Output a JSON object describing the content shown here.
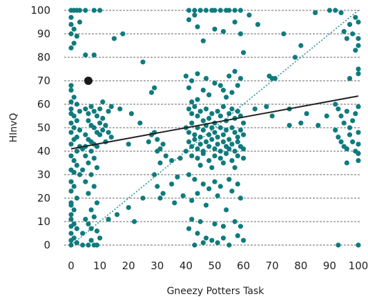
{
  "chart_data": {
    "type": "scatter",
    "title": "",
    "xlabel": "Gneezy Potters Task",
    "ylabel": "HInvQ",
    "xlim": [
      0,
      100
    ],
    "ylim": [
      0,
      100
    ],
    "x_ticks": [
      0,
      10,
      20,
      30,
      40,
      50,
      60,
      70,
      80,
      90,
      100
    ],
    "y_ticks": [
      0,
      10,
      20,
      30,
      40,
      50,
      60,
      70,
      80,
      90,
      100
    ],
    "x_tick_labels": [
      "0",
      "10",
      "20",
      "30",
      "40",
      "50",
      "60",
      "70",
      "80",
      "90",
      "100"
    ],
    "y_tick_labels": [
      "0",
      "10",
      "20",
      "30",
      "40",
      "50",
      "60",
      "70",
      "80",
      "90",
      "100"
    ],
    "grid": "horizontal-dashed",
    "colors": {
      "points": "#0f7b7e",
      "fit_line": "#222222",
      "identity_line": "#2a9090",
      "highlight": "#1a1a1a"
    },
    "identity_line": {
      "x": [
        0,
        100
      ],
      "y": [
        0,
        100
      ]
    },
    "fit_line": {
      "x": [
        0,
        100
      ],
      "y": [
        41,
        63.5
      ]
    },
    "highlight_point": {
      "x": 6,
      "y": 70
    },
    "points": [
      [
        0,
        100
      ],
      [
        1,
        100
      ],
      [
        2,
        100
      ],
      [
        3,
        100
      ],
      [
        5,
        100
      ],
      [
        8,
        100
      ],
      [
        10,
        100
      ],
      [
        0,
        97
      ],
      [
        0,
        94
      ],
      [
        1,
        92
      ],
      [
        0,
        90
      ],
      [
        2,
        89
      ],
      [
        1,
        86
      ],
      [
        0,
        84
      ],
      [
        5,
        81
      ],
      [
        8,
        81
      ],
      [
        3,
        95
      ],
      [
        0,
        58
      ],
      [
        15,
        88
      ],
      [
        18,
        90
      ],
      [
        25,
        78
      ],
      [
        28,
        65
      ],
      [
        29,
        67
      ],
      [
        0,
        68
      ],
      [
        0,
        66
      ],
      [
        1,
        63
      ],
      [
        0,
        61
      ],
      [
        2,
        60
      ],
      [
        0,
        56
      ],
      [
        1,
        55
      ],
      [
        3,
        57
      ],
      [
        2,
        53
      ],
      [
        0,
        52
      ],
      [
        1,
        50
      ],
      [
        3,
        49
      ],
      [
        0,
        48
      ],
      [
        2,
        46
      ],
      [
        1,
        45
      ],
      [
        0,
        43
      ],
      [
        3,
        42
      ],
      [
        2,
        40
      ],
      [
        4,
        41
      ],
      [
        0,
        38
      ],
      [
        1,
        36
      ],
      [
        2,
        34
      ],
      [
        0,
        32
      ],
      [
        1,
        31
      ],
      [
        3,
        30
      ],
      [
        0,
        27
      ],
      [
        1,
        25
      ],
      [
        0,
        23
      ],
      [
        2,
        20
      ],
      [
        0,
        18
      ],
      [
        0,
        17
      ],
      [
        1,
        15
      ],
      [
        0,
        13
      ],
      [
        0,
        11
      ],
      [
        1,
        9
      ],
      [
        0,
        8
      ],
      [
        2,
        7
      ],
      [
        0,
        5
      ],
      [
        1,
        3
      ],
      [
        0,
        2
      ],
      [
        2,
        1
      ],
      [
        0,
        0
      ],
      [
        4,
        0
      ],
      [
        6,
        0
      ],
      [
        8,
        0
      ],
      [
        9,
        0
      ],
      [
        7,
        2
      ],
      [
        5,
        58
      ],
      [
        6,
        56
      ],
      [
        7,
        59
      ],
      [
        8,
        57
      ],
      [
        9,
        55
      ],
      [
        6,
        53
      ],
      [
        7,
        51
      ],
      [
        8,
        50
      ],
      [
        9,
        48
      ],
      [
        10,
        47
      ],
      [
        5,
        47
      ],
      [
        6,
        45
      ],
      [
        7,
        44
      ],
      [
        8,
        43
      ],
      [
        9,
        42
      ],
      [
        5,
        42
      ],
      [
        7,
        40
      ],
      [
        5,
        38
      ],
      [
        8,
        37
      ],
      [
        6,
        35
      ],
      [
        9,
        33
      ],
      [
        4,
        32
      ],
      [
        7,
        30
      ],
      [
        5,
        27
      ],
      [
        8,
        25
      ],
      [
        6,
        22
      ],
      [
        9,
        18
      ],
      [
        7,
        15
      ],
      [
        8,
        12
      ],
      [
        5,
        11
      ],
      [
        6,
        9
      ],
      [
        7,
        7
      ],
      [
        9,
        6
      ],
      [
        10,
        3
      ],
      [
        4,
        5
      ],
      [
        10,
        58
      ],
      [
        11,
        54
      ],
      [
        12,
        51
      ],
      [
        13,
        48
      ],
      [
        14,
        46
      ],
      [
        12,
        44
      ],
      [
        10,
        52
      ],
      [
        11,
        49
      ],
      [
        13,
        57
      ],
      [
        14,
        59
      ],
      [
        11,
        61
      ],
      [
        17,
        58
      ],
      [
        21,
        56
      ],
      [
        24,
        52
      ],
      [
        20,
        43
      ],
      [
        28,
        47
      ],
      [
        30,
        45
      ],
      [
        32,
        43
      ],
      [
        31,
        41
      ],
      [
        29,
        48
      ],
      [
        27,
        44
      ],
      [
        30,
        40
      ],
      [
        33,
        38
      ],
      [
        31,
        35
      ],
      [
        35,
        36
      ],
      [
        38,
        37
      ],
      [
        29,
        30
      ],
      [
        30,
        25
      ],
      [
        32,
        22
      ],
      [
        31,
        20
      ],
      [
        35,
        26
      ],
      [
        37,
        29
      ],
      [
        36,
        18
      ],
      [
        39,
        21
      ],
      [
        25,
        20
      ],
      [
        20,
        16
      ],
      [
        16,
        13
      ],
      [
        13,
        11
      ],
      [
        22,
        10
      ],
      [
        41,
        100
      ],
      [
        43,
        100
      ],
      [
        45,
        100
      ],
      [
        47,
        100
      ],
      [
        49,
        100
      ],
      [
        50,
        100
      ],
      [
        52,
        100
      ],
      [
        54,
        100
      ],
      [
        55,
        100
      ],
      [
        57,
        100
      ],
      [
        59,
        100
      ],
      [
        62,
        98
      ],
      [
        44,
        93
      ],
      [
        50,
        92
      ],
      [
        53,
        91
      ],
      [
        46,
        87
      ],
      [
        60,
        82
      ],
      [
        59,
        90
      ],
      [
        57,
        95
      ],
      [
        65,
        94
      ],
      [
        41,
        96
      ],
      [
        43,
        98
      ],
      [
        40,
        72
      ],
      [
        42,
        70
      ],
      [
        44,
        73
      ],
      [
        47,
        71
      ],
      [
        50,
        69
      ],
      [
        52,
        68
      ],
      [
        55,
        72
      ],
      [
        57,
        74
      ],
      [
        59,
        71
      ],
      [
        58,
        68
      ],
      [
        46,
        66
      ],
      [
        48,
        64
      ],
      [
        53,
        66
      ],
      [
        41,
        67
      ],
      [
        44,
        62
      ],
      [
        54,
        63
      ],
      [
        56,
        65
      ],
      [
        42,
        61
      ],
      [
        41,
        58
      ],
      [
        42,
        56
      ],
      [
        43,
        59
      ],
      [
        44,
        55
      ],
      [
        45,
        57
      ],
      [
        46,
        53
      ],
      [
        47,
        58
      ],
      [
        48,
        54
      ],
      [
        49,
        56
      ],
      [
        50,
        52
      ],
      [
        51,
        57
      ],
      [
        52,
        55
      ],
      [
        53,
        59
      ],
      [
        54,
        53
      ],
      [
        55,
        56
      ],
      [
        56,
        58
      ],
      [
        57,
        54
      ],
      [
        58,
        57
      ],
      [
        59,
        55
      ],
      [
        60,
        52
      ],
      [
        40,
        50
      ],
      [
        41,
        48
      ],
      [
        42,
        52
      ],
      [
        43,
        47
      ],
      [
        44,
        50
      ],
      [
        45,
        46
      ],
      [
        46,
        49
      ],
      [
        47,
        51
      ],
      [
        48,
        47
      ],
      [
        49,
        50
      ],
      [
        50,
        48
      ],
      [
        51,
        46
      ],
      [
        52,
        50
      ],
      [
        53,
        47
      ],
      [
        54,
        49
      ],
      [
        55,
        45
      ],
      [
        56,
        50
      ],
      [
        57,
        48
      ],
      [
        58,
        46
      ],
      [
        59,
        49
      ],
      [
        60,
        47
      ],
      [
        41,
        44
      ],
      [
        42,
        42
      ],
      [
        43,
        45
      ],
      [
        44,
        41
      ],
      [
        45,
        43
      ],
      [
        46,
        40
      ],
      [
        47,
        44
      ],
      [
        48,
        42
      ],
      [
        49,
        45
      ],
      [
        50,
        41
      ],
      [
        51,
        43
      ],
      [
        52,
        40
      ],
      [
        53,
        44
      ],
      [
        54,
        42
      ],
      [
        55,
        41
      ],
      [
        56,
        43
      ],
      [
        57,
        40
      ],
      [
        58,
        44
      ],
      [
        59,
        42
      ],
      [
        60,
        41
      ],
      [
        40,
        40
      ],
      [
        42,
        38
      ],
      [
        44,
        37
      ],
      [
        46,
        39
      ],
      [
        48,
        36
      ],
      [
        50,
        38
      ],
      [
        52,
        37
      ],
      [
        54,
        39
      ],
      [
        56,
        36
      ],
      [
        58,
        38
      ],
      [
        60,
        37
      ],
      [
        45,
        34
      ],
      [
        49,
        33
      ],
      [
        53,
        35
      ],
      [
        57,
        33
      ],
      [
        41,
        30
      ],
      [
        43,
        28
      ],
      [
        46,
        26
      ],
      [
        48,
        24
      ],
      [
        50,
        27
      ],
      [
        52,
        25
      ],
      [
        55,
        28
      ],
      [
        58,
        26
      ],
      [
        44,
        22
      ],
      [
        51,
        21
      ],
      [
        56,
        23
      ],
      [
        59,
        20
      ],
      [
        42,
        19
      ],
      [
        47,
        17
      ],
      [
        54,
        15
      ],
      [
        45,
        10
      ],
      [
        50,
        9
      ],
      [
        53,
        8
      ],
      [
        57,
        10
      ],
      [
        41,
        7
      ],
      [
        44,
        5
      ],
      [
        47,
        3
      ],
      [
        49,
        2
      ],
      [
        51,
        1
      ],
      [
        53,
        3
      ],
      [
        55,
        0
      ],
      [
        58,
        4
      ],
      [
        43,
        0
      ],
      [
        46,
        1
      ],
      [
        42,
        11
      ],
      [
        59,
        8
      ],
      [
        60,
        2
      ],
      [
        64,
        58
      ],
      [
        68,
        59
      ],
      [
        70,
        55
      ],
      [
        76,
        58
      ],
      [
        80,
        52
      ],
      [
        82,
        56
      ],
      [
        86,
        51
      ],
      [
        89,
        55
      ],
      [
        76,
        51
      ],
      [
        92,
        60
      ],
      [
        93,
        58
      ],
      [
        94,
        55
      ],
      [
        95,
        52
      ],
      [
        96,
        57
      ],
      [
        97,
        50
      ],
      [
        98,
        53
      ],
      [
        99,
        56
      ],
      [
        100,
        59
      ],
      [
        92,
        49
      ],
      [
        93,
        46
      ],
      [
        94,
        44
      ],
      [
        95,
        42
      ],
      [
        96,
        41
      ],
      [
        97,
        47
      ],
      [
        98,
        44
      ],
      [
        99,
        40
      ],
      [
        100,
        48
      ],
      [
        100,
        43
      ],
      [
        100,
        39
      ],
      [
        100,
        36
      ],
      [
        96,
        35
      ],
      [
        69,
        72
      ],
      [
        70,
        71
      ],
      [
        71,
        71
      ],
      [
        74,
        90
      ],
      [
        78,
        80
      ],
      [
        80,
        85
      ],
      [
        85,
        99
      ],
      [
        90,
        100
      ],
      [
        92,
        100
      ],
      [
        94,
        99
      ],
      [
        95,
        91
      ],
      [
        96,
        88
      ],
      [
        97,
        94
      ],
      [
        98,
        90
      ],
      [
        99,
        97
      ],
      [
        100,
        95
      ],
      [
        100,
        88
      ],
      [
        100,
        85
      ],
      [
        100,
        75
      ],
      [
        100,
        73
      ],
      [
        99,
        83
      ],
      [
        97,
        71
      ],
      [
        93,
        0
      ],
      [
        100,
        0
      ]
    ]
  }
}
